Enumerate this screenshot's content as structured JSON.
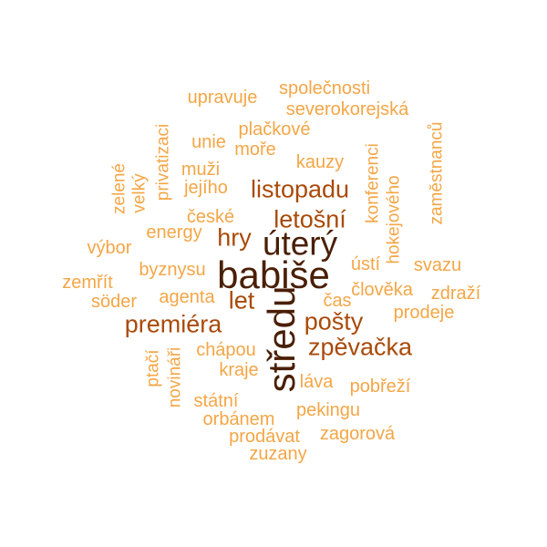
{
  "palette": {
    "c1": "#f4a646",
    "c2": "#ea8a2a",
    "c3": "#d0660f",
    "c4": "#a94a0a",
    "c5": "#6a2c06",
    "c6": "#4a1f05"
  },
  "words": [
    {
      "text": "společnosti",
      "weight": 1,
      "color": "c1"
    },
    {
      "text": "upravuje",
      "weight": 1,
      "color": "c1"
    },
    {
      "text": "severokorejská",
      "weight": 1,
      "color": "c1"
    },
    {
      "text": "zaměstnanců",
      "weight": 1,
      "color": "c1"
    },
    {
      "text": "plačkové",
      "weight": 1,
      "color": "c1"
    },
    {
      "text": "unie",
      "weight": 1,
      "color": "c1"
    },
    {
      "text": "moře",
      "weight": 1,
      "color": "c1"
    },
    {
      "text": "privatizaci",
      "weight": 1,
      "color": "c1"
    },
    {
      "text": "konferenci",
      "weight": 1,
      "color": "c1"
    },
    {
      "text": "kauzy",
      "weight": 1,
      "color": "c1"
    },
    {
      "text": "zelené",
      "weight": 1,
      "color": "c1"
    },
    {
      "text": "velký",
      "weight": 1,
      "color": "c1"
    },
    {
      "text": "muži",
      "weight": 1,
      "color": "c1"
    },
    {
      "text": "jejího",
      "weight": 1,
      "color": "c1"
    },
    {
      "text": "hokejového",
      "weight": 1,
      "color": "c1"
    },
    {
      "text": "listopadu",
      "weight": 3,
      "color": "c4"
    },
    {
      "text": "české",
      "weight": 1,
      "color": "c1"
    },
    {
      "text": "letošní",
      "weight": 3,
      "color": "c4"
    },
    {
      "text": "energy",
      "weight": 1,
      "color": "c1"
    },
    {
      "text": "hry",
      "weight": 3,
      "color": "c4"
    },
    {
      "text": "úterý",
      "weight": 5,
      "color": "c6"
    },
    {
      "text": "výbor",
      "weight": 1,
      "color": "c1"
    },
    {
      "text": "ústí",
      "weight": 1,
      "color": "c1"
    },
    {
      "text": "svazu",
      "weight": 1,
      "color": "c1"
    },
    {
      "text": "byznysu",
      "weight": 1,
      "color": "c1"
    },
    {
      "text": "babiše",
      "weight": 6,
      "color": "c6"
    },
    {
      "text": "zemřít",
      "weight": 1,
      "color": "c1"
    },
    {
      "text": "agenta",
      "weight": 1,
      "color": "c1"
    },
    {
      "text": "let",
      "weight": 3,
      "color": "c4"
    },
    {
      "text": "člověka",
      "weight": 1,
      "color": "c1"
    },
    {
      "text": "zdraží",
      "weight": 1,
      "color": "c1"
    },
    {
      "text": "söder",
      "weight": 1,
      "color": "c1"
    },
    {
      "text": "čas",
      "weight": 1,
      "color": "c1"
    },
    {
      "text": "prodeje",
      "weight": 1,
      "color": "c1"
    },
    {
      "text": "středu",
      "weight": 6,
      "color": "c6"
    },
    {
      "text": "premiéra",
      "weight": 3,
      "color": "c4"
    },
    {
      "text": "pošty",
      "weight": 3,
      "color": "c4"
    },
    {
      "text": "zpěvačka",
      "weight": 3,
      "color": "c4"
    },
    {
      "text": "chápou",
      "weight": 1,
      "color": "c1"
    },
    {
      "text": "ptačí",
      "weight": 1,
      "color": "c1"
    },
    {
      "text": "novináři",
      "weight": 1,
      "color": "c1"
    },
    {
      "text": "kraje",
      "weight": 1,
      "color": "c1"
    },
    {
      "text": "láva",
      "weight": 1,
      "color": "c1"
    },
    {
      "text": "pobřeží",
      "weight": 1,
      "color": "c1"
    },
    {
      "text": "státní",
      "weight": 1,
      "color": "c1"
    },
    {
      "text": "pekingu",
      "weight": 1,
      "color": "c1"
    },
    {
      "text": "orbánem",
      "weight": 1,
      "color": "c1"
    },
    {
      "text": "prodávat",
      "weight": 1,
      "color": "c1"
    },
    {
      "text": "zagorová",
      "weight": 1,
      "color": "c1"
    },
    {
      "text": "zuzany",
      "weight": 1,
      "color": "c1"
    }
  ]
}
